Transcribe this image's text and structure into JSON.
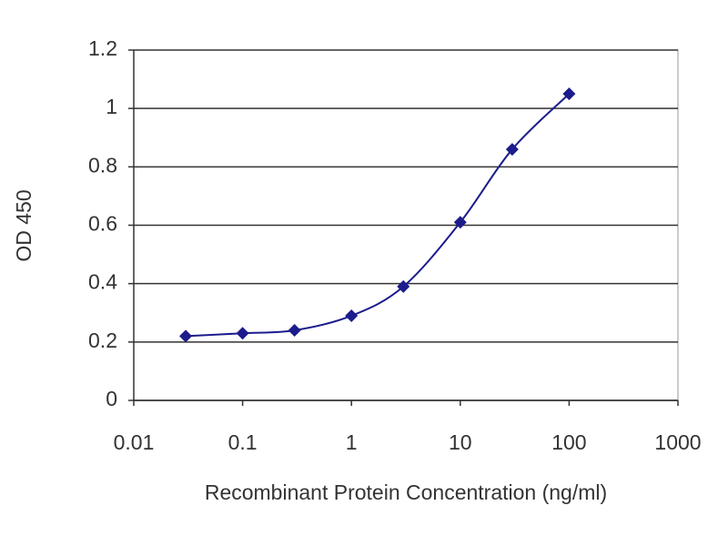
{
  "chart_data": {
    "type": "line",
    "xlabel": "Recombinant Protein Concentration (ng/ml)",
    "ylabel": "OD 450",
    "x": [
      0.03,
      0.1,
      0.3,
      1,
      3,
      10,
      30,
      100
    ],
    "series": [
      {
        "color": "#1c1c8c",
        "values": [
          0.22,
          0.23,
          0.24,
          0.29,
          0.39,
          0.61,
          0.86,
          1.05
        ]
      }
    ],
    "xscale": "log",
    "xlim": [
      0.01,
      1000
    ],
    "xticks": [
      0.01,
      0.1,
      1,
      10,
      100,
      1000
    ],
    "ylim": [
      0,
      1.2
    ],
    "yticks": [
      0,
      0.2,
      0.4,
      0.6,
      0.8,
      1,
      1.2
    ],
    "grid": true
  }
}
